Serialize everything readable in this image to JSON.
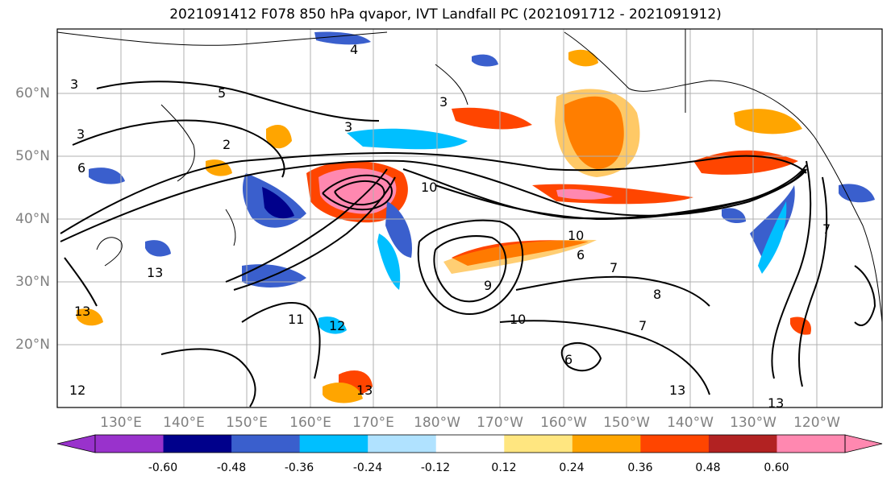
{
  "title": "2021091412 F078 850 hPa qvapor, IVT Landfall PC (2021091712 - 2021091912)",
  "map": {
    "lat_labels": [
      "60°N",
      "50°N",
      "40°N",
      "30°N",
      "20°N"
    ],
    "lon_labels": [
      "130°E",
      "140°E",
      "150°E",
      "160°E",
      "170°E",
      "180°W",
      "170°W",
      "160°W",
      "150°W",
      "140°W",
      "130°W",
      "120°W"
    ],
    "contour_labels": [
      "4",
      "3",
      "3",
      "5",
      "3",
      "3",
      "6",
      "2",
      "10",
      "10",
      "6",
      "7",
      "9",
      "8",
      "11",
      "12",
      "13",
      "13",
      "13",
      "10",
      "7",
      "6",
      "13",
      "13",
      "12",
      "7"
    ]
  },
  "colorbar": {
    "ticks": [
      "-0.60",
      "-0.48",
      "-0.36",
      "-0.24",
      "-0.12",
      "0.12",
      "0.24",
      "0.36",
      "0.48",
      "0.60"
    ],
    "colors": [
      "#9932cc",
      "#00008b",
      "#3a5fcd",
      "#00bfff",
      "#b0e2ff",
      "#ffffff",
      "#ffe680",
      "#ffa500",
      "#ff4500",
      "#b22222",
      "#ff88b0"
    ]
  },
  "colors": {
    "land_outline": "#000000",
    "gridline": "#b0b0b0",
    "contour": "#000000"
  }
}
